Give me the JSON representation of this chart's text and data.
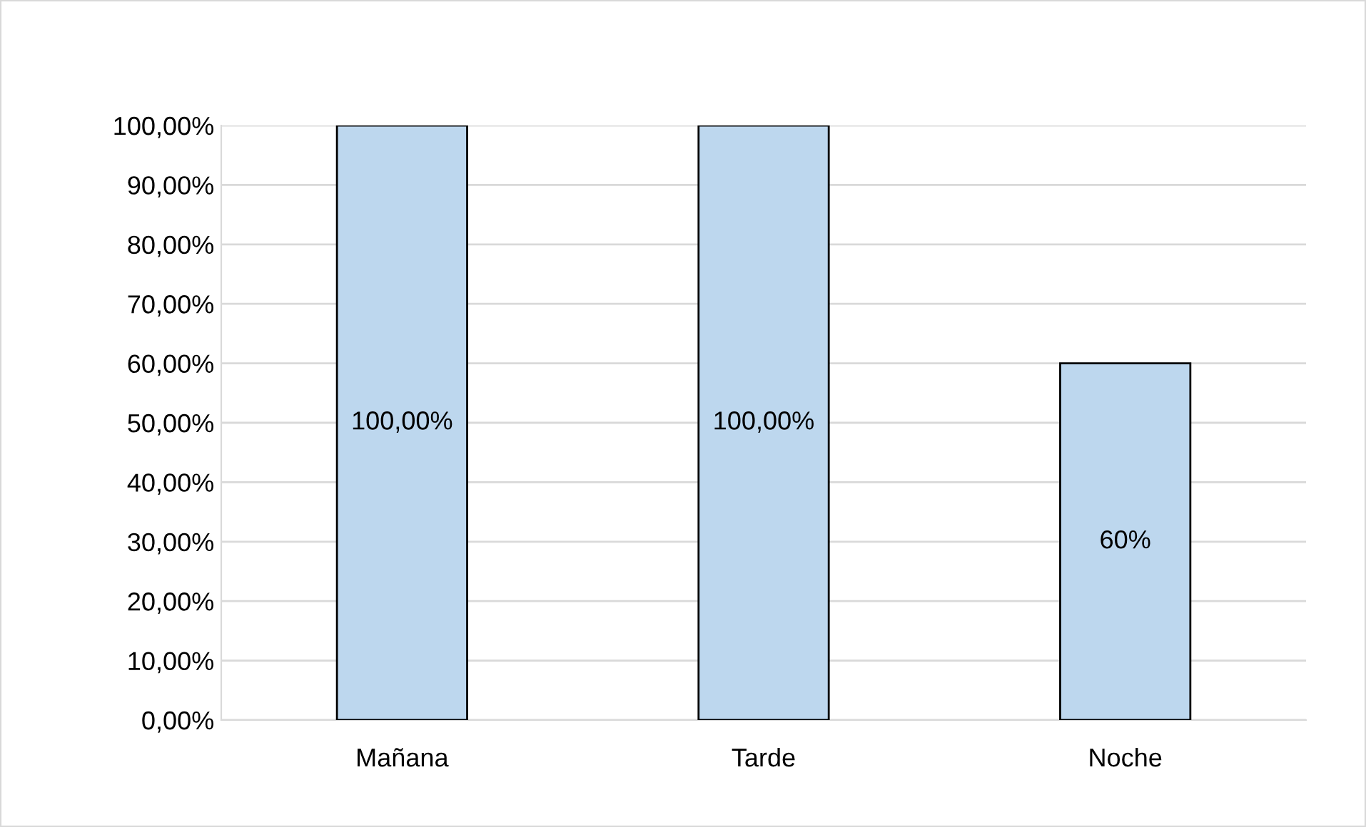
{
  "chart_data": {
    "type": "bar",
    "categories": [
      "Mañana",
      "Tarde",
      "Noche"
    ],
    "values": [
      100,
      100,
      60
    ],
    "color": "#bdd7ee",
    "value_labels": [
      "100,00%",
      "100,00%",
      "60%"
    ],
    "ylim": [
      0,
      100
    ],
    "yticks": [
      {
        "value": 0,
        "label": "0,00%"
      },
      {
        "value": 10,
        "label": "10,00%"
      },
      {
        "value": 20,
        "label": "20,00%"
      },
      {
        "value": 30,
        "label": "30,00%"
      },
      {
        "value": 40,
        "label": "40,00%"
      },
      {
        "value": 50,
        "label": "50,00%"
      },
      {
        "value": 60,
        "label": "60,00%"
      },
      {
        "value": 70,
        "label": "70,00%"
      },
      {
        "value": 80,
        "label": "80,00%"
      },
      {
        "value": 90,
        "label": "90,00%"
      },
      {
        "value": 100,
        "label": "100,00%"
      }
    ],
    "grid": "y"
  }
}
